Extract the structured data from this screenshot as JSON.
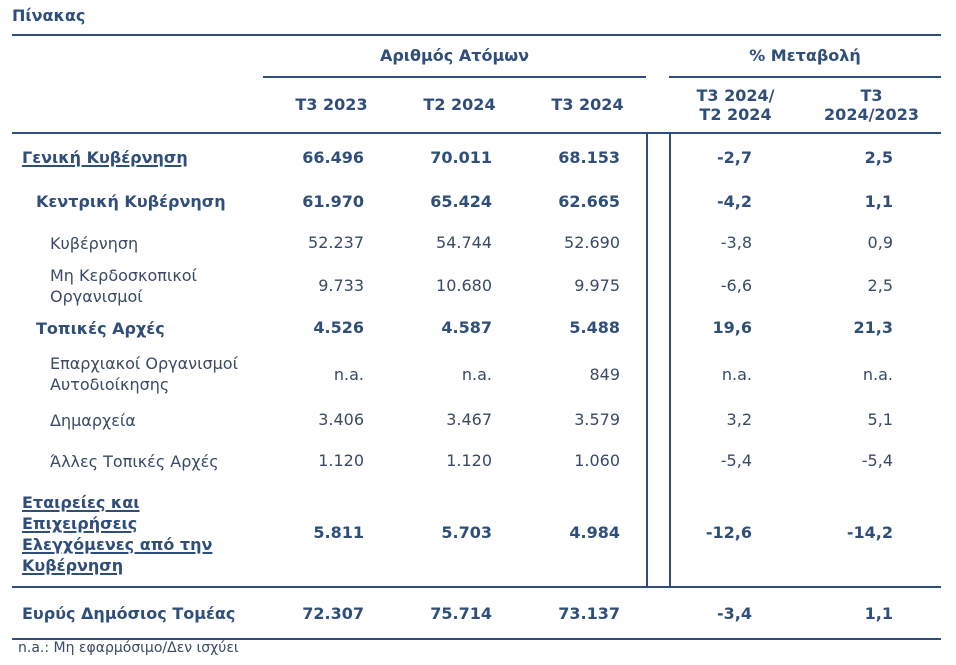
{
  "caption": "Πίνακας",
  "header": {
    "group1": "Αριθμός Ατόμων",
    "group2": "% Μεταβολή",
    "columns": [
      "Τ3 2023",
      "Τ2 2024",
      "Τ3 2024",
      "Τ3 2024/\nΤ2 2024",
      "Τ3\n2024/2023"
    ]
  },
  "rows": [
    {
      "label": "Γενική Κυβέρνηση",
      "values": [
        "66.496",
        "70.011",
        "68.153",
        "-2,7",
        "2,5"
      ]
    },
    {
      "label": "Κεντρική Κυβέρνηση",
      "values": [
        "61.970",
        "65.424",
        "62.665",
        "-4,2",
        "1,1"
      ]
    },
    {
      "label": "Κυβέρνηση",
      "values": [
        "52.237",
        "54.744",
        "52.690",
        "-3,8",
        "0,9"
      ]
    },
    {
      "label": "Μη Κερδοσκοπικοί\nΟργανισμοί",
      "values": [
        "9.733",
        "10.680",
        "9.975",
        "-6,6",
        "2,5"
      ]
    },
    {
      "label": "Τοπικές Αρχές",
      "values": [
        "4.526",
        "4.587",
        "5.488",
        "19,6",
        "21,3"
      ]
    },
    {
      "label": "Επαρχιακοί Οργανισμοί\nΑυτοδιοίκησης",
      "values": [
        "n.a.",
        "n.a.",
        "849",
        "n.a.",
        "n.a."
      ]
    },
    {
      "label": "Δημαρχεία",
      "values": [
        "3.406",
        "3.467",
        "3.579",
        "3,2",
        "5,1"
      ]
    },
    {
      "label": "Άλλες Τοπικές Αρχές",
      "values": [
        "1.120",
        "1.120",
        "1.060",
        "-5,4",
        "-5,4"
      ]
    },
    {
      "label": "Εταιρείες και\nΕπιχειρήσεις\nΕλεγχόμενες από την\nΚυβέρνηση",
      "values": [
        "5.811",
        "5.703",
        "4.984",
        "-12,6",
        "-14,2"
      ]
    },
    {
      "label": "Ευρύς Δημόσιος Τομέας",
      "values": [
        "72.307",
        "75.714",
        "73.137",
        "-3,4",
        "1,1"
      ]
    }
  ],
  "footnote": "n.a.: Μη εφαρμόσιμο/Δεν ισχύει",
  "colors": {
    "accent": "#2f4f7a",
    "text": "#3a4a66"
  }
}
